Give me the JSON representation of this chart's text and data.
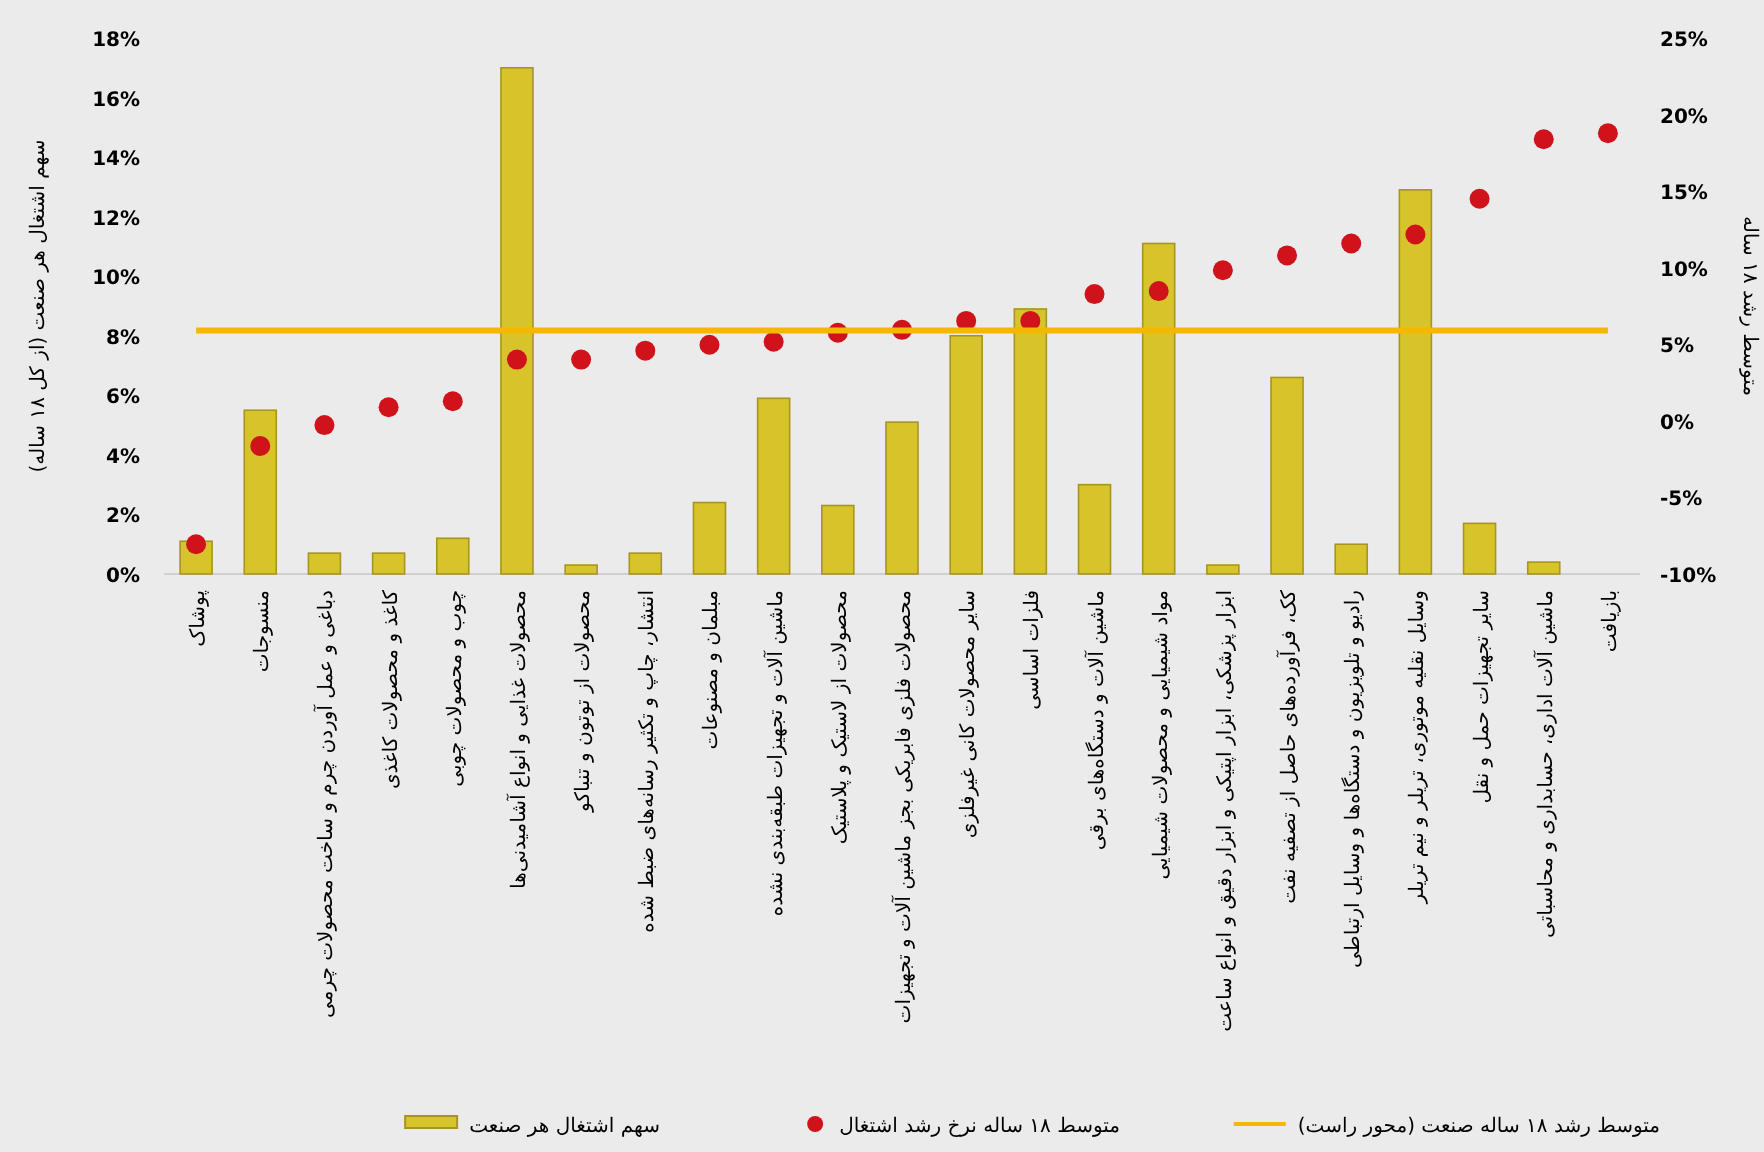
{
  "chart_data": {
    "type": "bar",
    "categories": [
      "پوشاک",
      "منسوجات",
      "دباغی و عمل آوردن چرم و ساخت محصولات چرمی",
      "کاغذ و محصولات کاغذی",
      "چوب و محصولات چوبی",
      "محصولات غذایی و انواع آشامیدنی‌ها",
      "محصولات از توتون و تنباکو",
      "انتشار، چاپ و تکثیر رسانه‌های ضبط شده",
      "مبلمان و مصنوعات",
      "ماشین آلات و تجهیزات طبقه‌بندی نشده",
      "محصولات از لاستیک و پلاستیک",
      "محصولات فلزی فابریکی بجز ماشین آلات و تجهیزات",
      "سایر محصولات کانی غیرفلزی",
      "فلزات اساسی",
      "ماشین آلات و دستگاه‌های برقی",
      "مواد شیمیایی و محصولات شیمیایی",
      "ابزار پزشکی، ابزار اپتیکی و ابزار دقیق و انواع ساعت",
      "کک، فرآورده‌های حاصل از تصفیه نفت",
      "رادیو و تلویزیون و دستگاه‌ها و وسایل ارتباطی",
      "وسایل نقلیه موتوری، تریلر و نیم تریلر",
      "سایر تجهیزات حمل و نقل",
      "ماشین آلات اداری، حسابداری و محاسباتی",
      "بازیافت"
    ],
    "series": [
      {
        "name": "سهم اشتغال هر صنعت",
        "color": "#d6c42a",
        "values": [
          1.1,
          5.5,
          0.7,
          0.7,
          1.2,
          17.0,
          0.3,
          0.7,
          2.4,
          5.9,
          2.3,
          5.1,
          8.0,
          8.9,
          3.0,
          11.1,
          0.3,
          6.6,
          1.0,
          12.9,
          1.7,
          0.4,
          0
        ]
      },
      {
        "name": "متوسط ۱۸ ساله نرخ رشد اشتغال",
        "type": "scatter",
        "marker": "circle",
        "color": "#d0121b",
        "values": [
          1.0,
          4.3,
          5.0,
          5.6,
          5.8,
          7.2,
          7.2,
          7.5,
          7.7,
          7.8,
          8.1,
          8.2,
          8.5,
          8.5,
          9.4,
          9.5,
          10.2,
          10.7,
          11.1,
          11.4,
          12.6,
          14.6,
          14.8
        ]
      },
      {
        "name": "متوسط رشد ۱۸ ساله صنعت (محور راست)",
        "type": "line",
        "axis": "y2",
        "color": "#f5b800",
        "values": [
          5.9,
          5.9,
          5.9,
          5.9,
          5.9,
          5.9,
          5.9,
          5.9,
          5.9,
          5.9,
          5.9,
          5.9,
          5.9,
          5.9,
          5.9,
          5.9,
          5.9,
          5.9,
          5.9,
          5.9,
          5.9,
          5.9,
          5.9
        ]
      }
    ],
    "ylabel": "سهم اشتغال هر صنعت (از کل ۱۸ ساله)",
    "y2label": "متوسط رشد ۱۸ ساله",
    "ylim": [
      0,
      18
    ],
    "yticks": [
      {
        "value": 0,
        "label": "0%"
      },
      {
        "value": 2,
        "label": "2%"
      },
      {
        "value": 4,
        "label": "4%"
      },
      {
        "value": 6,
        "label": "6%"
      },
      {
        "value": 8,
        "label": "8%"
      },
      {
        "value": 10,
        "label": "10%"
      },
      {
        "value": 12,
        "label": "12%"
      },
      {
        "value": 14,
        "label": "14%"
      },
      {
        "value": 16,
        "label": "16%"
      },
      {
        "value": 18,
        "label": "18%"
      }
    ],
    "y2lim": [
      -10,
      25
    ],
    "y2ticks": [
      {
        "value": -10,
        "label": "-10%"
      },
      {
        "value": -5,
        "label": "-5%"
      },
      {
        "value": 0,
        "label": "0%"
      },
      {
        "value": 5,
        "label": "5%"
      },
      {
        "value": 10,
        "label": "10%"
      },
      {
        "value": 15,
        "label": "15%"
      },
      {
        "value": 20,
        "label": "20%"
      },
      {
        "value": 25,
        "label": "25%"
      }
    ],
    "legend": "bottom"
  }
}
